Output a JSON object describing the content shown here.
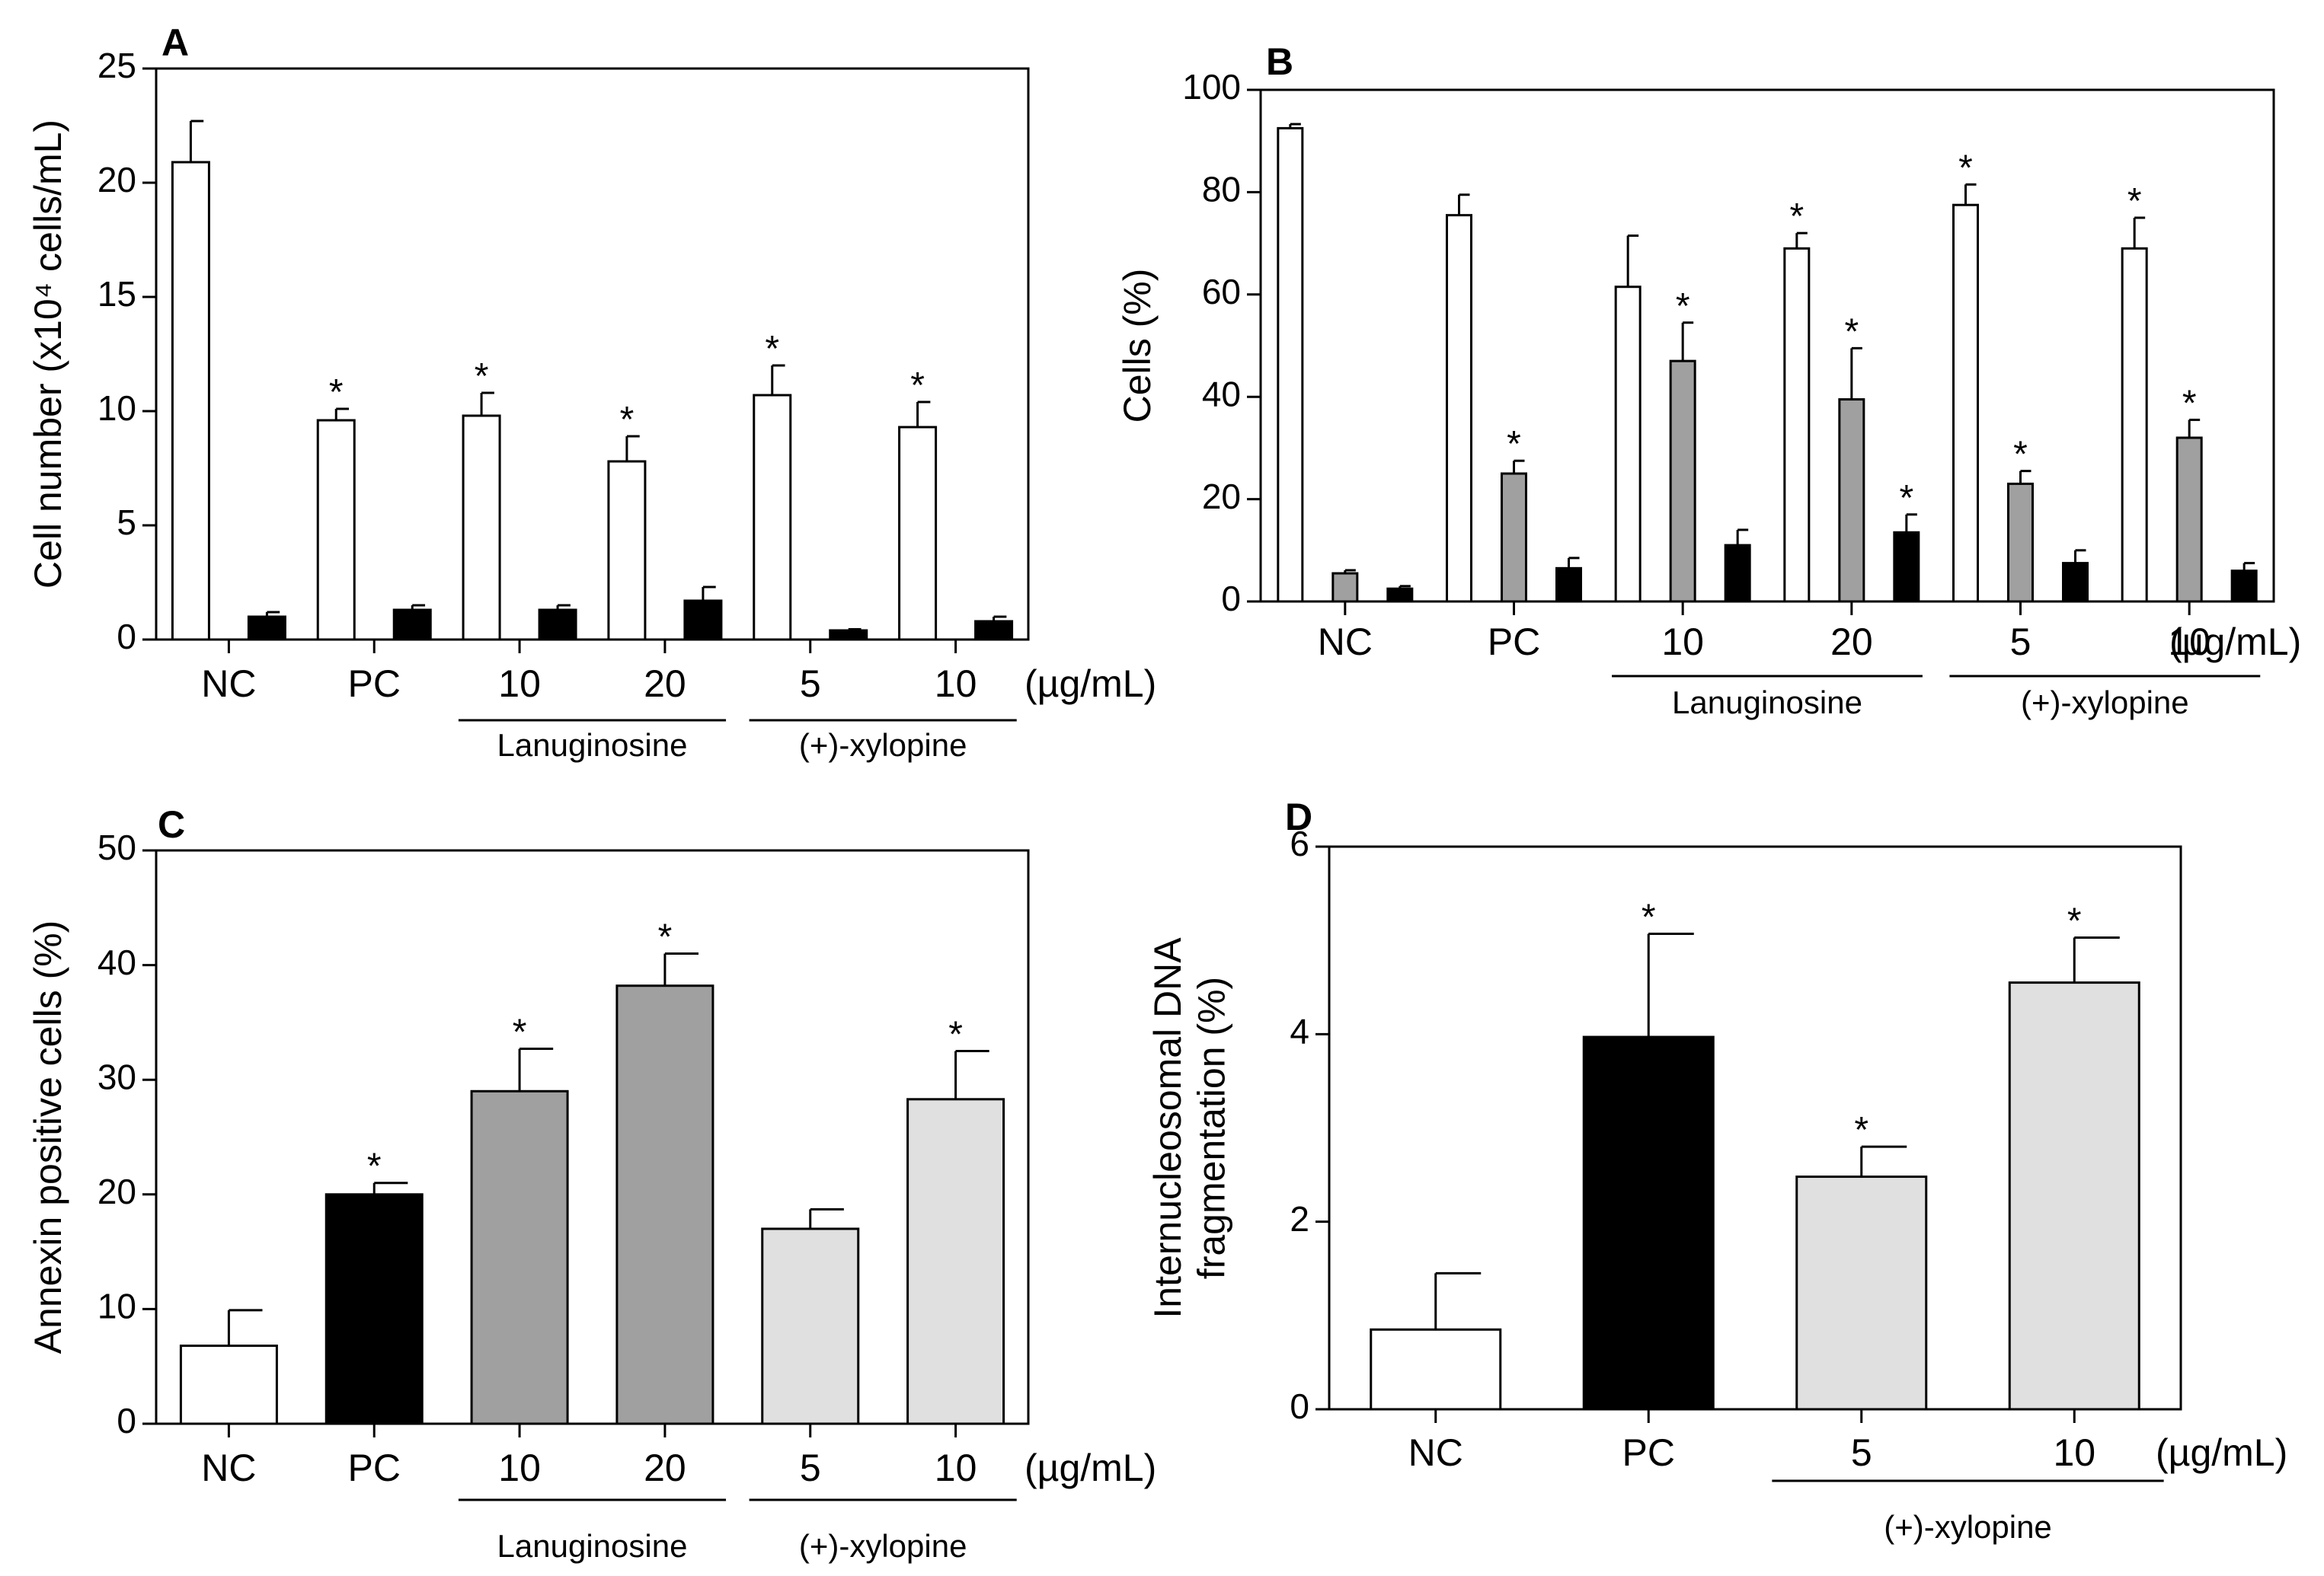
{
  "colors": {
    "white_bar": "#ffffff",
    "gray_bar": "#a0a0a0",
    "black_bar": "#000000",
    "light_bar": "#e0e0e0",
    "axis": "#000000"
  },
  "chart_data": [
    {
      "id": "A",
      "panel_label": "A",
      "type": "bar",
      "ylabel": "Cell number (x10⁴ cells/mL)",
      "ylim": [
        0,
        25
      ],
      "yticks": [
        0,
        5,
        10,
        15,
        20,
        25
      ],
      "categories": [
        "NC",
        "PC",
        "10",
        "20",
        "5",
        "10"
      ],
      "unit_label": "(µg/mL)",
      "groups": [
        {
          "label": "Lanuginosine",
          "from": 2,
          "to": 3
        },
        {
          "label": "(+)-xylopine",
          "from": 4,
          "to": 5
        }
      ],
      "series": [
        {
          "name": "white",
          "color": "#ffffff",
          "values": [
            20.9,
            9.6,
            9.8,
            7.8,
            10.7,
            9.3
          ],
          "errors": [
            1.8,
            0.5,
            1.0,
            1.1,
            1.3,
            1.1
          ],
          "sig": [
            false,
            true,
            true,
            true,
            true,
            true
          ]
        },
        {
          "name": "black",
          "color": "#000000",
          "values": [
            1.0,
            1.3,
            1.3,
            1.7,
            0.4,
            0.8
          ],
          "errors": [
            0.2,
            0.2,
            0.2,
            0.6,
            0.05,
            0.2
          ],
          "sig": [
            false,
            false,
            false,
            false,
            false,
            false
          ]
        }
      ]
    },
    {
      "id": "B",
      "panel_label": "B",
      "type": "bar",
      "ylabel": "Cells (%)",
      "ylim": [
        0,
        100
      ],
      "yticks": [
        0,
        20,
        40,
        60,
        80,
        100
      ],
      "categories": [
        "NC",
        "PC",
        "10",
        "20",
        "5",
        "10"
      ],
      "unit_label": "(µg/mL)",
      "groups": [
        {
          "label": "Lanuginosine",
          "from": 2,
          "to": 3
        },
        {
          "label": "(+)-xylopine",
          "from": 4,
          "to": 5
        }
      ],
      "series": [
        {
          "name": "white",
          "color": "#ffffff",
          "values": [
            92.5,
            75.5,
            61.5,
            69,
            77.5,
            69
          ],
          "errors": [
            0.8,
            4.0,
            10.0,
            3.0,
            4.0,
            6.0
          ],
          "sig": [
            false,
            false,
            false,
            true,
            true,
            true
          ]
        },
        {
          "name": "gray",
          "color": "#a0a0a0",
          "values": [
            5.5,
            25,
            47,
            39.5,
            23,
            32
          ],
          "errors": [
            0.6,
            2.5,
            7.5,
            10.0,
            2.5,
            3.5
          ],
          "sig": [
            false,
            true,
            true,
            true,
            true,
            true
          ]
        },
        {
          "name": "black",
          "color": "#000000",
          "values": [
            2.5,
            6.5,
            11,
            13.5,
            7.5,
            6.0
          ],
          "errors": [
            0.5,
            2.0,
            3.0,
            3.5,
            2.5,
            1.5
          ],
          "sig": [
            false,
            false,
            false,
            true,
            false,
            false
          ]
        }
      ]
    },
    {
      "id": "C",
      "panel_label": "C",
      "type": "bar",
      "ylabel": "Annexin positive cells (%)",
      "ylim": [
        0,
        50
      ],
      "yticks": [
        0,
        10,
        20,
        30,
        40,
        50
      ],
      "categories": [
        "NC",
        "PC",
        "10",
        "20",
        "5",
        "10"
      ],
      "unit_label": "(µg/mL)",
      "groups": [
        {
          "label": "Lanuginosine",
          "from": 2,
          "to": 3
        },
        {
          "label": "(+)-xylopine",
          "from": 4,
          "to": 5
        }
      ],
      "bar_colors": [
        "#ffffff",
        "#000000",
        "#a0a0a0",
        "#a0a0a0",
        "#e0e0e0",
        "#e0e0e0"
      ],
      "series": [
        {
          "name": "annexin",
          "values": [
            6.8,
            20,
            29,
            38.2,
            17,
            28.3
          ],
          "errors": [
            3.1,
            1.0,
            3.7,
            2.8,
            1.7,
            4.2
          ],
          "sig": [
            false,
            true,
            true,
            true,
            false,
            true
          ]
        }
      ]
    },
    {
      "id": "D",
      "panel_label": "D",
      "type": "bar",
      "ylabel": "Internucleosomal DNA fragmentation (%)",
      "ylabel_lines": [
        "Internucleosomal DNA",
        "fragmentation (%)"
      ],
      "ylim": [
        0,
        6
      ],
      "yticks": [
        0,
        2,
        4,
        6
      ],
      "categories": [
        "NC",
        "PC",
        "5",
        "10"
      ],
      "unit_label": "(µg/mL)",
      "groups": [
        {
          "label": "(+)-xylopine",
          "from": 2,
          "to": 3
        }
      ],
      "bar_colors": [
        "#ffffff",
        "#000000",
        "#e0e0e0",
        "#e0e0e0"
      ],
      "series": [
        {
          "name": "dna",
          "values": [
            0.85,
            3.97,
            2.48,
            4.55
          ],
          "errors": [
            0.6,
            1.1,
            0.32,
            0.48
          ],
          "sig": [
            false,
            true,
            true,
            true
          ]
        }
      ]
    }
  ]
}
